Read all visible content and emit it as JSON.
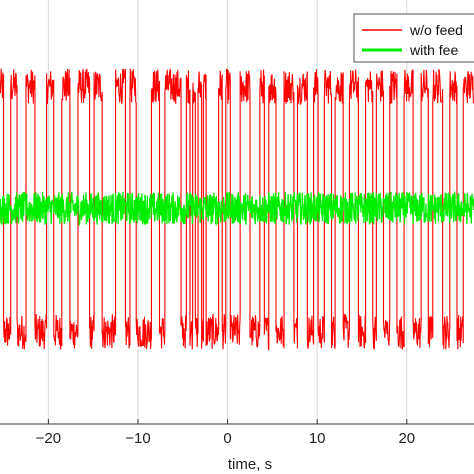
{
  "chart_data": {
    "type": "line",
    "title": "",
    "xlabel": "time, s",
    "ylabel": "",
    "xlim": [
      -25.4,
      27.5
    ],
    "ylim": [
      -1.45,
      1.4
    ],
    "xticks": [
      -20,
      -10,
      0,
      10,
      20
    ],
    "xtick_labels": [
      "−20",
      "−10",
      "0",
      "10",
      "20"
    ],
    "grid": true,
    "legend_position": "top-right",
    "series": [
      {
        "name": "w/o feedback",
        "color": "#ff0000",
        "kind": "telegraph-switching",
        "high_level": 0.82,
        "low_level": -0.83,
        "switch_times": [
          -25.0,
          -24.2,
          -23.5,
          -22.5,
          -21.5,
          -20.2,
          -19.4,
          -18.5,
          -17.6,
          -16.7,
          -15.4,
          -14.9,
          -14.0,
          -12.5,
          -11.4,
          -10.9,
          -10.2,
          -8.5,
          -7.6,
          -7.0,
          -5.2,
          -4.6,
          -4.2,
          -3.9,
          -3.6,
          -3.3,
          -2.9,
          -2.7,
          -2.4,
          -1.0,
          -0.6,
          -0.2,
          0.3,
          1.4,
          2.5,
          3.6,
          4.1,
          4.6,
          5.4,
          6.3,
          7.4,
          7.8,
          8.9,
          9.6,
          10.1,
          10.8,
          11.6,
          12.0,
          12.9,
          13.6,
          14.6,
          15.4,
          16.2,
          16.6,
          17.4,
          18.1,
          18.9,
          19.7,
          20.7,
          21.6,
          22.4,
          22.9,
          24.0,
          24.8,
          25.6,
          26.3
        ],
        "start_level": "high",
        "noise_amplitude": 0.12
      },
      {
        "name": "with feedback",
        "color": "#00ee00",
        "kind": "noise-band",
        "mean": 0.0,
        "half_width": 0.11
      }
    ]
  },
  "legend": {
    "entries": [
      "w/o feedback",
      "with feedback"
    ],
    "visible_text": [
      "w/o feed",
      "with fee"
    ]
  },
  "colors": {
    "grid": "#d9d9d9",
    "axes": "#333333"
  }
}
